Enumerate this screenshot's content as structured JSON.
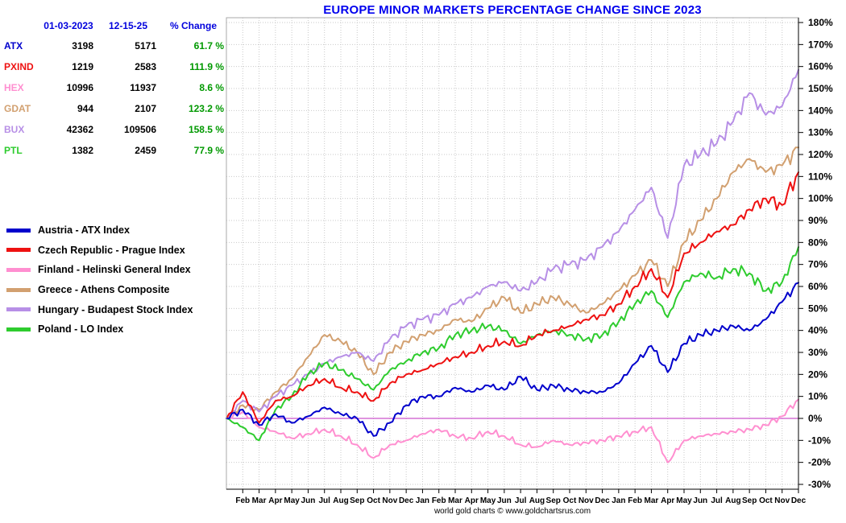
{
  "title": "EUROPE MINOR MARKETS PERCENTAGE CHANGE SINCE 2023",
  "footer": "world gold charts © www.goldchartsrus.com",
  "colors": {
    "title": "#0000ee",
    "table_header": "#0000dd",
    "change_positive": "#009900",
    "zero_line": "#cc55cc",
    "grid": "#c9c9c9",
    "axis": "#000000"
  },
  "stats_table": {
    "headers": [
      "01-03-2023",
      "12-15-25",
      "% Change"
    ],
    "rows": [
      {
        "ticker": "ATX",
        "start": "3198",
        "end": "5171",
        "change": "61.7 %"
      },
      {
        "ticker": "PXIND",
        "start": "1219",
        "end": "2583",
        "change": "111.9 %"
      },
      {
        "ticker": "HEX",
        "start": "10996",
        "end": "11937",
        "change": "8.6 %"
      },
      {
        "ticker": "GDAT",
        "start": "944",
        "end": "2107",
        "change": "123.2 %"
      },
      {
        "ticker": "BUX",
        "start": "42362",
        "end": "109506",
        "change": "158.5 %"
      },
      {
        "ticker": "PTL",
        "start": "1382",
        "end": "2459",
        "change": "77.9 %"
      }
    ]
  },
  "chart_data": {
    "type": "line",
    "title": "EUROPE MINOR MARKETS PERCENTAGE CHANGE SINCE 2023",
    "xlabel": "",
    "ylabel": "percent change",
    "ylim": [
      -30,
      180
    ],
    "y_tick_step": 10,
    "y_tick_suffix": "%",
    "grid": true,
    "legend_position": "left",
    "x_start": "Jan 2023",
    "x_end": "Dec 2025",
    "x_labels": [
      "",
      "Feb",
      "Mar",
      "Apr",
      "May",
      "Jun",
      "Jul",
      "Aug",
      "Sep",
      "Oct",
      "Nov",
      "Dec",
      "Jan",
      "Feb",
      "Mar",
      "Apr",
      "May",
      "Jun",
      "Jul",
      "Aug",
      "Sep",
      "Oct",
      "Nov",
      "Dec",
      "Jan",
      "Feb",
      "Mar",
      "Apr",
      "May",
      "Jun",
      "Jul",
      "Aug",
      "Sep",
      "Oct",
      "Nov",
      "Dec"
    ],
    "series": [
      {
        "name": "Austria - ATX Index",
        "ticker": "ATX",
        "color": "#0000cc",
        "values": [
          0,
          4,
          -3,
          2,
          -2,
          1,
          5,
          2,
          0,
          -8,
          -2,
          6,
          10,
          10,
          14,
          12,
          15,
          13,
          19,
          13,
          15,
          13,
          12,
          12,
          16,
          25,
          33,
          21,
          34,
          38,
          40,
          42,
          40,
          45,
          53,
          61.7
        ]
      },
      {
        "name": "Czech Republic - Prague Index",
        "ticker": "PXIND",
        "color": "#ee1111",
        "values": [
          0,
          12,
          -2,
          8,
          10,
          15,
          18,
          14,
          12,
          8,
          16,
          20,
          22,
          25,
          28,
          30,
          33,
          35,
          33,
          38,
          40,
          42,
          45,
          47,
          52,
          60,
          68,
          55,
          75,
          80,
          85,
          88,
          95,
          100,
          97,
          111.9
        ]
      },
      {
        "name": "Finland - Helinski General Index",
        "ticker": "HEX",
        "color": "#ff8fd0",
        "values": [
          0,
          3,
          -4,
          -6,
          -9,
          -7,
          -5,
          -8,
          -12,
          -18,
          -12,
          -10,
          -7,
          -5,
          -8,
          -9,
          -6,
          -8,
          -12,
          -13,
          -10,
          -12,
          -11,
          -10,
          -8,
          -6,
          -4,
          -20,
          -10,
          -8,
          -7,
          -6,
          -5,
          -3,
          1,
          8.6
        ]
      },
      {
        "name": "Greece - Athens Composite",
        "ticker": "GDAT",
        "color": "#d2a070",
        "values": [
          0,
          6,
          4,
          12,
          18,
          28,
          38,
          35,
          30,
          20,
          30,
          35,
          38,
          40,
          45,
          44,
          50,
          55,
          48,
          52,
          55,
          52,
          48,
          52,
          58,
          65,
          72,
          60,
          80,
          90,
          100,
          112,
          118,
          112,
          115,
          123.2
        ]
      },
      {
        "name": "Hungary - Budapest Stock Index",
        "ticker": "BUX",
        "color": "#b78fe6",
        "values": [
          0,
          8,
          3,
          10,
          15,
          20,
          25,
          28,
          30,
          26,
          36,
          42,
          45,
          47,
          52,
          55,
          60,
          62,
          58,
          62,
          68,
          70,
          72,
          78,
          85,
          95,
          105,
          82,
          115,
          120,
          125,
          135,
          148,
          138,
          142,
          158.5
        ]
      },
      {
        "name": "Poland - LO Index",
        "ticker": "PTL",
        "color": "#2ecc2e",
        "values": [
          0,
          -4,
          -10,
          4,
          10,
          20,
          25,
          22,
          18,
          13,
          22,
          26,
          30,
          32,
          38,
          40,
          42,
          40,
          34,
          38,
          40,
          38,
          36,
          38,
          44,
          52,
          58,
          46,
          62,
          66,
          64,
          68,
          66,
          58,
          62,
          77.9
        ]
      }
    ]
  }
}
